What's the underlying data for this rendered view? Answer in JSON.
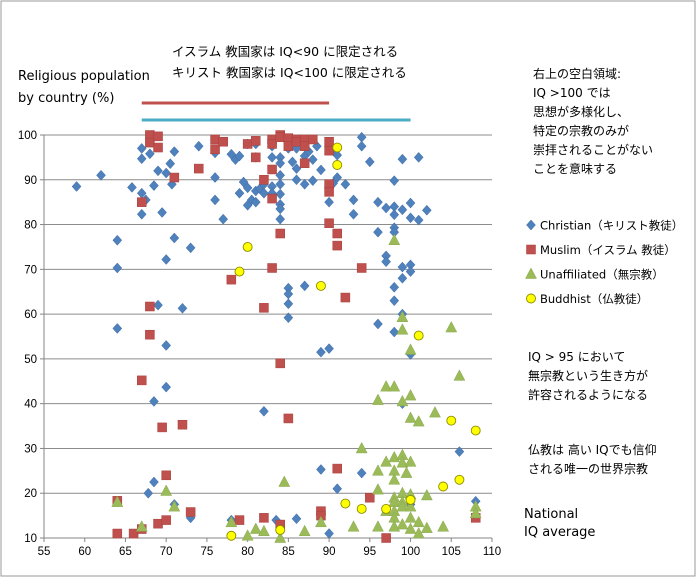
{
  "chart_data": {
    "type": "scatter",
    "xlabel": "National IQ average",
    "xlabel_lines": [
      "National",
      "IQ average"
    ],
    "ylabel": "Religious population by country (%)",
    "ylabel_lines": [
      "Religious population",
      "by country  (%)"
    ],
    "xlim": [
      55,
      110
    ],
    "ylim": [
      10,
      100
    ],
    "xticks": [
      "55",
      "60",
      "65",
      "70",
      "75",
      "80",
      "85",
      "90",
      "95",
      "100",
      "105",
      "110"
    ],
    "yticks": [
      "10",
      "20",
      "30",
      "40",
      "50",
      "60",
      "70",
      "80",
      "90",
      "100"
    ],
    "grid": "horizontal",
    "legend": "right",
    "annotations": {
      "top_line1": "イスラム 教国家は IQ<90 に限定される",
      "top_line2": "キリスト 教国家は IQ<100 に限定される",
      "right_top": [
        "右上の空白領域:",
        "IQ >100 では",
        "思想が多様化し、",
        "特定の宗教のみが",
        "崇拝されることがない",
        "ことを意味する"
      ],
      "right_mid": [
        "IQ > 95 において",
        "無宗教という生き方が",
        "許容されるようになる"
      ],
      "right_bottom": [
        "仏教は 高い IQでも信仰",
        "される唯一の世界宗教"
      ]
    },
    "reference_lines": [
      {
        "name": "muslim-limit",
        "x_range": [
          67,
          90
        ],
        "color": "#c0504d"
      },
      {
        "name": "christian-limit",
        "x_range": [
          67,
          100
        ],
        "color": "#4bacc6"
      }
    ],
    "series": [
      {
        "name": "Christian（キリスト教徒）",
        "marker": "diamond",
        "color": "#4f81bd",
        "points": [
          [
            59,
            88.5
          ],
          [
            62,
            91
          ],
          [
            64,
            76.5
          ],
          [
            64,
            70.3
          ],
          [
            64,
            56.8
          ],
          [
            65.8,
            88.3
          ],
          [
            67,
            97
          ],
          [
            67,
            94.7
          ],
          [
            67,
            87
          ],
          [
            67,
            82.3
          ],
          [
            67.5,
            85.5
          ],
          [
            67.8,
            20
          ],
          [
            68,
            95.8
          ],
          [
            68.5,
            88.7
          ],
          [
            68.5,
            40.5
          ],
          [
            68.5,
            22.5
          ],
          [
            69,
            92
          ],
          [
            69,
            62
          ],
          [
            69.5,
            82.7
          ],
          [
            70,
            91.5
          ],
          [
            70,
            72.2
          ],
          [
            70,
            53
          ],
          [
            70,
            43.7
          ],
          [
            70.5,
            93.6
          ],
          [
            70.7,
            89
          ],
          [
            71,
            96.3
          ],
          [
            71,
            77
          ],
          [
            71,
            17.5
          ],
          [
            72,
            61.3
          ],
          [
            73,
            74.8
          ],
          [
            73,
            14.5
          ],
          [
            74,
            97.5
          ],
          [
            76,
            96
          ],
          [
            76,
            90.5
          ],
          [
            76,
            85.5
          ],
          [
            77,
            81.2
          ],
          [
            78,
            14
          ],
          [
            78,
            95.7
          ],
          [
            78.5,
            94.5
          ],
          [
            79,
            95.3
          ],
          [
            79,
            87
          ],
          [
            79.5,
            89.5
          ],
          [
            80,
            88.2
          ],
          [
            80,
            84.3
          ],
          [
            80,
            98
          ],
          [
            80.5,
            85.5
          ],
          [
            81,
            98
          ],
          [
            81,
            95
          ],
          [
            81,
            87.5
          ],
          [
            81,
            85
          ],
          [
            81.5,
            88
          ],
          [
            82,
            89
          ],
          [
            82,
            87
          ],
          [
            82,
            38.3
          ],
          [
            83,
            97.5
          ],
          [
            83,
            95
          ],
          [
            83,
            88.5
          ],
          [
            83,
            87
          ],
          [
            83.5,
            14
          ],
          [
            84,
            95
          ],
          [
            84,
            93.7
          ],
          [
            84,
            91
          ],
          [
            84,
            89
          ],
          [
            84,
            86.8
          ],
          [
            84,
            84.5
          ],
          [
            84,
            83.5
          ],
          [
            84,
            81.2
          ],
          [
            84,
            12.3
          ],
          [
            85,
            99
          ],
          [
            85,
            97
          ],
          [
            85,
            65.8
          ],
          [
            85,
            64.5
          ],
          [
            85,
            62.3
          ],
          [
            85,
            59.2
          ],
          [
            85.5,
            94
          ],
          [
            86,
            97
          ],
          [
            86,
            92.5
          ],
          [
            86,
            90
          ],
          [
            86,
            14.3
          ],
          [
            87,
            97.5
          ],
          [
            87,
            95.3
          ],
          [
            87,
            89
          ],
          [
            87,
            66.3
          ],
          [
            87.5,
            96.3
          ],
          [
            88,
            94.5
          ],
          [
            88,
            89.8
          ],
          [
            88.5,
            97.5
          ],
          [
            89,
            92.2
          ],
          [
            89,
            51.5
          ],
          [
            89,
            25.3
          ],
          [
            90,
            88.8
          ],
          [
            90,
            85
          ],
          [
            90,
            52.3
          ],
          [
            90,
            11
          ],
          [
            90.5,
            96.5
          ],
          [
            90.5,
            89.2
          ],
          [
            91,
            95.5
          ],
          [
            91,
            90.5
          ],
          [
            91,
            21
          ],
          [
            92,
            89
          ],
          [
            93,
            85.5
          ],
          [
            93,
            82.3
          ],
          [
            94,
            99.5
          ],
          [
            94,
            97.5
          ],
          [
            94,
            24.5
          ],
          [
            95,
            94
          ],
          [
            96,
            85
          ],
          [
            96,
            78.3
          ],
          [
            96,
            57.8
          ],
          [
            97,
            83.7
          ],
          [
            97,
            73
          ],
          [
            97,
            71.7
          ],
          [
            98,
            89.8
          ],
          [
            98,
            84
          ],
          [
            98,
            82.2
          ],
          [
            98,
            79.3
          ],
          [
            98,
            78.3
          ],
          [
            98,
            66
          ],
          [
            98,
            63
          ],
          [
            98,
            56
          ],
          [
            99,
            94.6
          ],
          [
            99,
            83.3
          ],
          [
            99,
            68
          ],
          [
            99,
            40
          ],
          [
            99,
            60
          ],
          [
            99,
            70.5
          ],
          [
            100,
            84.8
          ],
          [
            100,
            81.5
          ],
          [
            100,
            71
          ],
          [
            100,
            69.5
          ],
          [
            100,
            51
          ],
          [
            100,
            17.5
          ],
          [
            101,
            95
          ],
          [
            101,
            81
          ],
          [
            102,
            83.2
          ],
          [
            106,
            29.3
          ],
          [
            108,
            18.2
          ]
        ]
      },
      {
        "name": "Muslim（イスラム 教徒）",
        "marker": "square",
        "color": "#c0504d",
        "points": [
          [
            64,
            18.3
          ],
          [
            64,
            11
          ],
          [
            66,
            11
          ],
          [
            67,
            85
          ],
          [
            67,
            45.2
          ],
          [
            67,
            12
          ],
          [
            68,
            100
          ],
          [
            68,
            98.3
          ],
          [
            68,
            61.7
          ],
          [
            68,
            55.4
          ],
          [
            69,
            99.7
          ],
          [
            69,
            97.2
          ],
          [
            69,
            13.2
          ],
          [
            69.5,
            34.7
          ],
          [
            70,
            24
          ],
          [
            70,
            14
          ],
          [
            71,
            90.5
          ],
          [
            72,
            35.3
          ],
          [
            73,
            15.8
          ],
          [
            74,
            92.5
          ],
          [
            76,
            99
          ],
          [
            76,
            96.8
          ],
          [
            77,
            98.5
          ],
          [
            78,
            67.7
          ],
          [
            79,
            14
          ],
          [
            80,
            98
          ],
          [
            81,
            95
          ],
          [
            81,
            98.7
          ],
          [
            82,
            90
          ],
          [
            82,
            61.4
          ],
          [
            82,
            14.5
          ],
          [
            83,
            99
          ],
          [
            83,
            92.3
          ],
          [
            83,
            85.8
          ],
          [
            83,
            70.3
          ],
          [
            83,
            98
          ],
          [
            84,
            100
          ],
          [
            84,
            99.5
          ],
          [
            84,
            78
          ],
          [
            84,
            49
          ],
          [
            84,
            13
          ],
          [
            85,
            36.7
          ],
          [
            85,
            99.3
          ],
          [
            85,
            97.5
          ],
          [
            86,
            99
          ],
          [
            86,
            98.5
          ],
          [
            87,
            99
          ],
          [
            87,
            97.5
          ],
          [
            87,
            93.7
          ],
          [
            88,
            99
          ],
          [
            89,
            16
          ],
          [
            89,
            15
          ],
          [
            90,
            98.5
          ],
          [
            90,
            96.5
          ],
          [
            90,
            89
          ],
          [
            90,
            87.3
          ],
          [
            90,
            80.3
          ],
          [
            91,
            78
          ],
          [
            91,
            75.3
          ],
          [
            91,
            25.5
          ],
          [
            92,
            63.7
          ],
          [
            94,
            70.3
          ],
          [
            95,
            19
          ],
          [
            97,
            10
          ],
          [
            108,
            14.5
          ]
        ]
      },
      {
        "name": "Unaffiliated（無宗教）",
        "marker": "triangle",
        "color": "#9bbb59",
        "points": [
          [
            64,
            18
          ],
          [
            67,
            12.5
          ],
          [
            70,
            20.5
          ],
          [
            71,
            17
          ],
          [
            78,
            13.5
          ],
          [
            80,
            10.5
          ],
          [
            81,
            12
          ],
          [
            82,
            11.5
          ],
          [
            84,
            10
          ],
          [
            84.5,
            22.5
          ],
          [
            87,
            11.5
          ],
          [
            89,
            13.5
          ],
          [
            93,
            12.5
          ],
          [
            94,
            30
          ],
          [
            96,
            25
          ],
          [
            96,
            20.8
          ],
          [
            96,
            12.5
          ],
          [
            96,
            40.8
          ],
          [
            97,
            27
          ],
          [
            97,
            16
          ],
          [
            97,
            43.8
          ],
          [
            98,
            76.5
          ],
          [
            98,
            43.8
          ],
          [
            98,
            28
          ],
          [
            98,
            25
          ],
          [
            98,
            23
          ],
          [
            98,
            19
          ],
          [
            98,
            18
          ],
          [
            98,
            16
          ],
          [
            98,
            14.5
          ],
          [
            98,
            12.5
          ],
          [
            99,
            59.3
          ],
          [
            99,
            56.5
          ],
          [
            99,
            40.5
          ],
          [
            99,
            28.5
          ],
          [
            99,
            26.8
          ],
          [
            99,
            20
          ],
          [
            99,
            18
          ],
          [
            99,
            17
          ],
          [
            99,
            13
          ],
          [
            99.5,
            24.5
          ],
          [
            100,
            52
          ],
          [
            100,
            41.8
          ],
          [
            100,
            36.8
          ],
          [
            100,
            27
          ],
          [
            100,
            19.7
          ],
          [
            100,
            17
          ],
          [
            100,
            14.5
          ],
          [
            100,
            12
          ],
          [
            101,
            36
          ],
          [
            101,
            13.5
          ],
          [
            101,
            11
          ],
          [
            102,
            12.2
          ],
          [
            102,
            19.5
          ],
          [
            103,
            38
          ],
          [
            104,
            12.5
          ],
          [
            105,
            57
          ],
          [
            106,
            46.2
          ],
          [
            108,
            17
          ],
          [
            108,
            15.5
          ]
        ]
      },
      {
        "name": "Buddhist（仏教徒）",
        "marker": "circle",
        "color": "#ffff00",
        "points": [
          [
            78,
            10.5
          ],
          [
            79,
            69.5
          ],
          [
            80,
            75
          ],
          [
            84,
            11.8
          ],
          [
            89,
            66.3
          ],
          [
            91,
            97.2
          ],
          [
            91,
            93.3
          ],
          [
            92,
            17.7
          ],
          [
            94,
            16.5
          ],
          [
            97,
            16.5
          ],
          [
            100,
            18.5
          ],
          [
            101,
            55.2
          ],
          [
            104,
            21.5
          ],
          [
            105,
            36.2
          ],
          [
            106,
            23
          ],
          [
            108,
            34
          ]
        ]
      }
    ]
  }
}
